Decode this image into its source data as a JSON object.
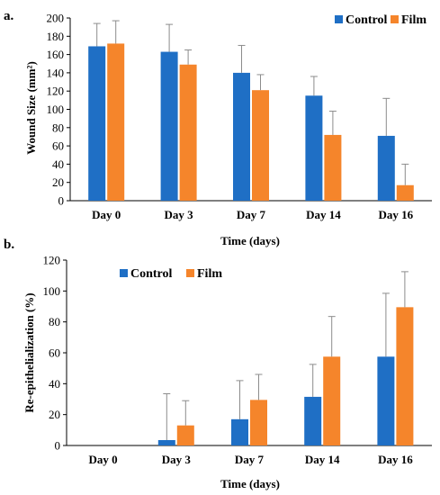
{
  "colors": {
    "control": "#1f6fc5",
    "film": "#f5852b",
    "errorbar": "#8c8c8c",
    "axis": "#000000"
  },
  "chart_data": [
    {
      "panel_label": "a.",
      "type": "bar",
      "categories": [
        "Day 0",
        "Day 3",
        "Day 7",
        "Day 14",
        "Day 16"
      ],
      "series": [
        {
          "name": "Control",
          "values": [
            169,
            163,
            140,
            115,
            71
          ],
          "errors": [
            25,
            30,
            30,
            21,
            41
          ]
        },
        {
          "name": "Film",
          "values": [
            172,
            149,
            121,
            72,
            17
          ],
          "errors": [
            25,
            16,
            17,
            26,
            23
          ]
        }
      ],
      "ylim": [
        0,
        200
      ],
      "yticks": [
        0,
        20,
        40,
        60,
        80,
        100,
        120,
        140,
        160,
        180,
        200
      ],
      "xlabel": "Time (days)",
      "ylabel": "Wound Size (mm²)",
      "legend_position": "top-right",
      "grid": false
    },
    {
      "panel_label": "b.",
      "type": "bar",
      "categories": [
        "Day 0",
        "Day 3",
        "Day 7",
        "Day 14",
        "Day 16"
      ],
      "series": [
        {
          "name": "Control",
          "values": [
            0,
            3.5,
            17,
            31.5,
            57.5
          ],
          "errors": [
            0,
            30,
            25,
            21,
            41
          ]
        },
        {
          "name": "Film",
          "values": [
            0,
            13,
            29.5,
            57.5,
            89.5
          ],
          "errors": [
            0,
            16,
            16.5,
            26,
            23
          ]
        }
      ],
      "ylim": [
        0,
        120
      ],
      "yticks": [
        0,
        20,
        40,
        60,
        80,
        100,
        120
      ],
      "xlabel": "Time (days)",
      "ylabel": "Re-epithelialization (%)",
      "legend_position": "top-left",
      "grid": false
    }
  ]
}
